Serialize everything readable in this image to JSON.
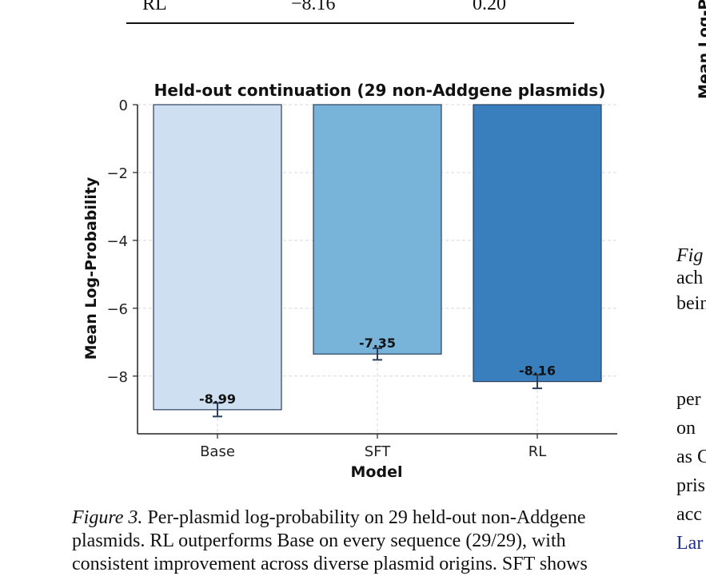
{
  "table_fragment": {
    "row_label": "RL",
    "col1": "−8.16",
    "col2": "0.20"
  },
  "chart_data": {
    "type": "bar",
    "title": "Held-out continuation (29 non-Addgene plasmids)",
    "xlabel": "Model",
    "ylabel": "Mean Log-Probability",
    "categories": [
      "Base",
      "SFT",
      "RL"
    ],
    "values": [
      -8.99,
      -7.35,
      -8.16
    ],
    "value_labels": [
      "-8.99",
      "-7.35",
      "-8.16"
    ],
    "error": [
      0.2,
      0.17,
      0.2
    ],
    "ylim": [
      -9.7,
      0
    ],
    "yticks": [
      0,
      -2,
      -4,
      -6,
      -8
    ],
    "ytick_labels": [
      "0",
      "−2",
      "−4",
      "−6",
      "−8"
    ],
    "grid": true,
    "colors": [
      "#cddff0",
      "#78b4d9",
      "#397fbd"
    ],
    "edge_color": "#2b3f5c"
  },
  "caption": {
    "label": "Figure 3.",
    "line1": "Per-plasmid log-probability on 29 held-out non-Addgene",
    "line2": "plasmids. RL outperforms Base on every sequence (29/29), with",
    "line3": "consistent improvement across diverse plasmid origins. SFT shows"
  },
  "side_column": {
    "ylabel_fragment": "Mean Log-P",
    "fig_fragment": "Fig",
    "lines_top": [
      "ach",
      "bein"
    ],
    "lines_bottom": [
      "per",
      "on",
      "as C",
      "pris",
      "acc"
    ],
    "link_fragment": "Lar"
  }
}
